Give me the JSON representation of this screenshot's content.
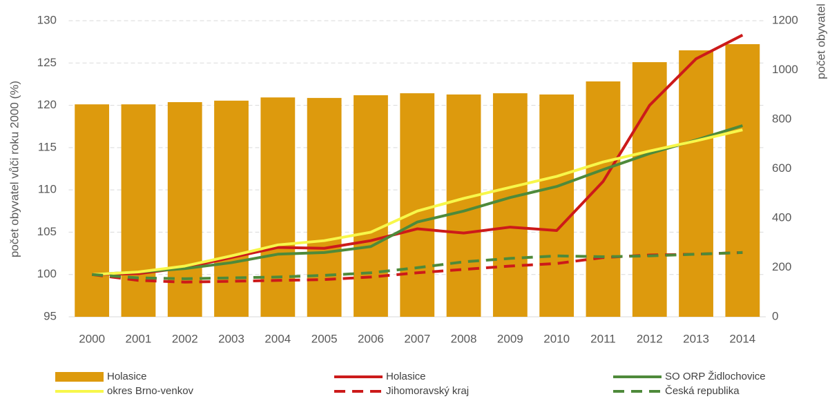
{
  "chart_data": {
    "type": "combo",
    "y_label": "počet obyvatel vůči roku 2000 (%)",
    "y2_label": "počet obyvatel",
    "categories": [
      "2000",
      "2001",
      "2002",
      "2003",
      "2004",
      "2005",
      "2006",
      "2007",
      "2008",
      "2009",
      "2010",
      "2011",
      "2012",
      "2013",
      "2014"
    ],
    "ylim": [
      95,
      130
    ],
    "yticks": [
      95,
      100,
      105,
      110,
      115,
      120,
      125,
      130
    ],
    "y2lim": [
      0,
      1200
    ],
    "y2ticks": [
      0,
      200,
      400,
      600,
      800,
      1000,
      1200
    ],
    "grid": true,
    "legend": "bottom",
    "series": [
      {
        "name": "Holasice",
        "type": "bar",
        "axis": "y2",
        "color": "#dd9a0d",
        "values": [
          861,
          861,
          870,
          876,
          889,
          887,
          898,
          906,
          901,
          906,
          901,
          954,
          1032,
          1080,
          1105
        ]
      },
      {
        "name": "Holasice",
        "type": "line",
        "color": "#cc1a1a",
        "dashed": false,
        "values": [
          100,
          100.1,
          100.8,
          102,
          103.2,
          103.1,
          104,
          105.4,
          104.9,
          105.6,
          105.2,
          111,
          120,
          125.5,
          128.3
        ]
      },
      {
        "name": "SO ORP Židlochovice",
        "type": "line",
        "color": "#4e8a3a",
        "dashed": false,
        "values": [
          100,
          100.3,
          100.7,
          101.4,
          102.4,
          102.6,
          103.3,
          106.2,
          107.5,
          109.1,
          110.4,
          112.4,
          114.3,
          115.9,
          117.6
        ]
      },
      {
        "name": "okres Brno-venkov",
        "type": "line",
        "color": "#f7f74a",
        "dashed": false,
        "values": [
          100,
          100.3,
          101,
          102.2,
          103.5,
          104,
          105,
          107.5,
          109,
          110.3,
          111.6,
          113.3,
          114.6,
          115.8,
          117.1
        ]
      },
      {
        "name": "Jihomoravský kraj",
        "type": "line",
        "color": "#cc1a1a",
        "dashed": true,
        "values": [
          100,
          99.3,
          99.1,
          99.2,
          99.3,
          99.4,
          99.7,
          100.2,
          100.6,
          101,
          101.3,
          102,
          102.3,
          102.4,
          102.6
        ]
      },
      {
        "name": "Česká republika",
        "type": "line",
        "color": "#4e8a3a",
        "dashed": true,
        "values": [
          100,
          99.6,
          99.5,
          99.6,
          99.7,
          99.9,
          100.2,
          100.8,
          101.5,
          101.9,
          102.2,
          102.1,
          102.2,
          102.4,
          102.6
        ]
      }
    ]
  }
}
